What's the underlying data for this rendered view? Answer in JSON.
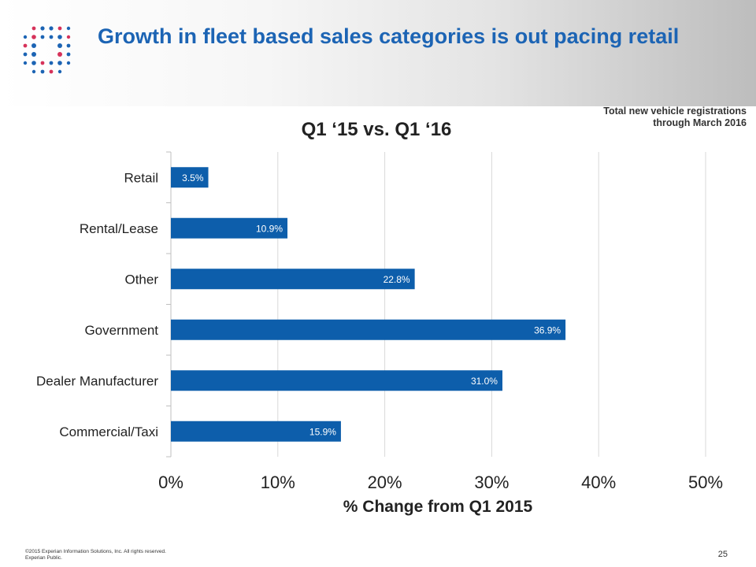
{
  "slide": {
    "title": "Growth in fleet based sales categories is out pacing retail",
    "source_note_line1": "Total new vehicle registrations",
    "source_note_line2": "through March 2016",
    "footer_line1": "©2015 Experian Information Solutions, Inc. All rights reserved.",
    "footer_line2": "Experian Public.",
    "page_number": "25"
  },
  "colors": {
    "bar": "#0d5eab",
    "title": "#1c64b4",
    "logo_blue": "#1c64b4",
    "logo_red": "#d6325a"
  },
  "chart_data": {
    "type": "bar",
    "orientation": "horizontal",
    "title": "Q1 ‘15 vs. Q1 ‘16",
    "xlabel": "% Change from Q1 2015",
    "ylabel": "",
    "categories": [
      "Retail",
      "Rental/Lease",
      "Other",
      "Government",
      "Dealer Manufacturer",
      "Commercial/Taxi"
    ],
    "values": [
      3.5,
      10.9,
      22.8,
      36.9,
      31.0,
      15.9
    ],
    "data_labels": [
      "3.5%",
      "10.9%",
      "22.8%",
      "36.9%",
      "31.0%",
      "15.9%"
    ],
    "xlim": [
      0,
      50
    ],
    "ticks": [
      0,
      10,
      20,
      30,
      40,
      50
    ],
    "tick_labels": [
      "0%",
      "10%",
      "20%",
      "30%",
      "40%",
      "50%"
    ],
    "grid": true,
    "legend": "none"
  }
}
